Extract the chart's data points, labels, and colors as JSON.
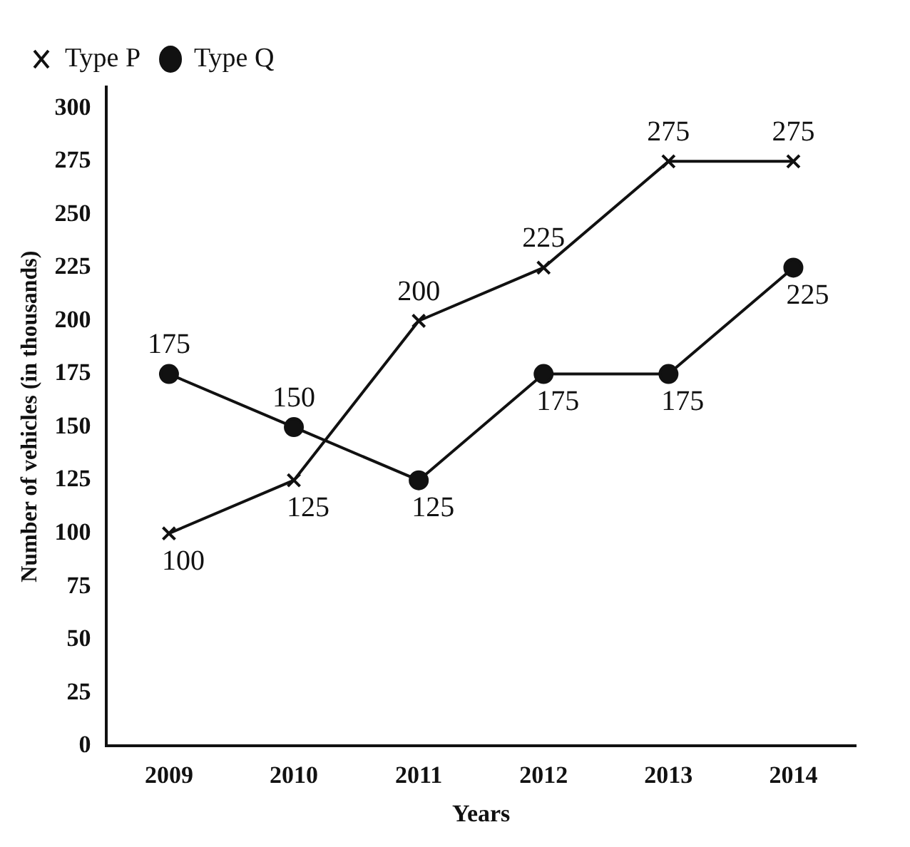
{
  "chart_data": {
    "type": "line",
    "xlabel": "Years",
    "ylabel": "Number of vehicles (in thousands)",
    "categories": [
      "2009",
      "2010",
      "2011",
      "2012",
      "2013",
      "2014"
    ],
    "series": [
      {
        "name": "Type P",
        "color": "#111111",
        "marker": "cross",
        "values": [
          100,
          125,
          200,
          225,
          275,
          275
        ]
      },
      {
        "name": "Type Q",
        "color": "#111111",
        "marker": "circle",
        "values": [
          175,
          150,
          125,
          175,
          175,
          225
        ]
      }
    ],
    "ylim": [
      0,
      310
    ],
    "yticks": [
      0,
      25,
      50,
      75,
      100,
      125,
      150,
      175,
      200,
      225,
      250,
      275,
      300
    ],
    "grid": false,
    "legend": "top left",
    "data_labels": true,
    "line_style": "solid"
  }
}
